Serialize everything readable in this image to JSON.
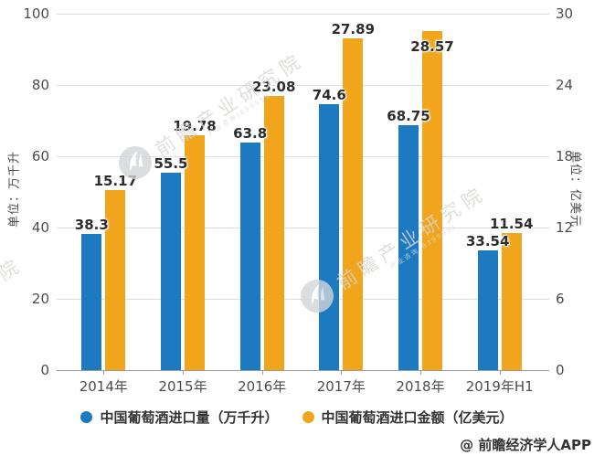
{
  "watermark": {
    "logo": "qianzhan-logo",
    "text": "前瞻产业研究院",
    "subtext": "产业咨询(839599)"
  },
  "footer": {
    "credit": "@ 前瞻经济学人APP"
  },
  "chart_data": {
    "type": "bar",
    "categories": [
      "2014年",
      "2015年",
      "2016年",
      "2017年",
      "2018年",
      "2019年H1"
    ],
    "series": [
      {
        "name": "中国葡萄酒进口量（万千升）",
        "axis": "left",
        "color": "#1e7ac0",
        "values": [
          38.3,
          55.5,
          63.8,
          74.6,
          68.75,
          33.54
        ],
        "labels": [
          "38.3",
          "55.5",
          "63.8",
          "74.6",
          "68.75",
          "33.54"
        ],
        "label_dy": [
          0,
          0,
          0,
          0,
          0,
          0
        ]
      },
      {
        "name": "中国葡萄酒进口金额（亿美元）",
        "axis": "right",
        "color": "#f0a51d",
        "values": [
          15.17,
          19.78,
          23.08,
          27.89,
          28.57,
          11.54
        ],
        "labels": [
          "15.17",
          "19.78",
          "23.08",
          "27.89",
          "28.57",
          "11.54"
        ],
        "label_dy": [
          0,
          0,
          0,
          0,
          27,
          0
        ]
      }
    ],
    "left_axis": {
      "title": "单位：万千升",
      "max": 100,
      "ticks": [
        100,
        80,
        60,
        40,
        20,
        0
      ]
    },
    "right_axis": {
      "title": "单位：亿美元",
      "max": 30,
      "ticks": [
        30,
        24,
        18,
        12,
        6,
        0
      ]
    },
    "grid": true,
    "legend_position": "bottom"
  }
}
